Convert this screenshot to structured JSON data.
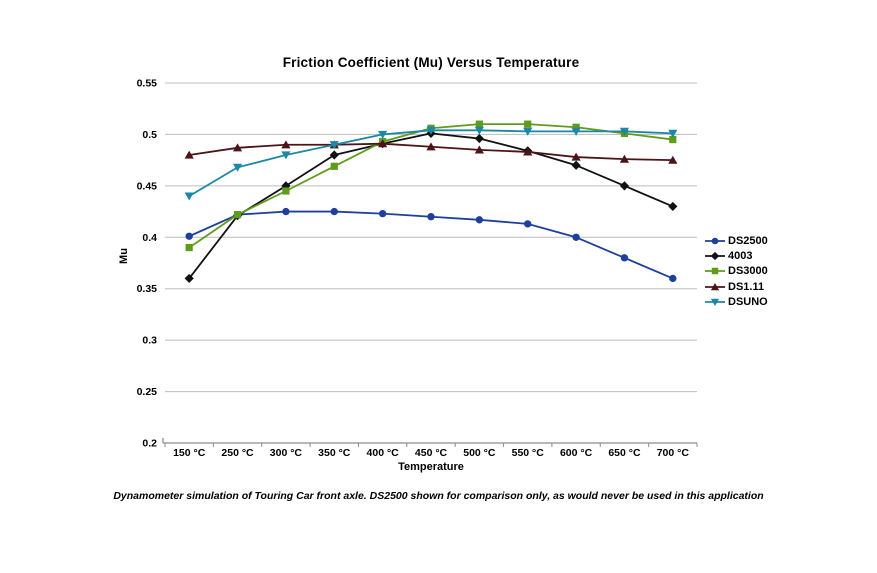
{
  "style": {
    "background": "#ffffff",
    "grid_color": "#bdbdbd",
    "axis_color": "#8c8c8c",
    "text_color": "#000000"
  },
  "chart_data": {
    "type": "line",
    "title": "Friction Coefficient (Mu) Versus Temperature",
    "xlabel": "Temperature",
    "ylabel": "Mu",
    "caption": "Dynamometer simulation of Touring Car front axle. DS2500 shown for comparison only, as would never be used in this application",
    "categories": [
      "150 °C",
      "250 °C",
      "300 °C",
      "350 °C",
      "400 °C",
      "450 °C",
      "500 °C",
      "550 °C",
      "600 °C",
      "650 °C",
      "700 °C"
    ],
    "ylim": [
      0.2,
      0.55
    ],
    "ytick_step": 0.05,
    "grid": true,
    "legend_position": "right",
    "series": [
      {
        "name": "DS2500",
        "color": "#1e3f9c",
        "marker": "circle",
        "values": [
          0.401,
          0.422,
          0.425,
          0.425,
          0.423,
          0.42,
          0.417,
          0.413,
          0.4,
          0.38,
          0.36
        ]
      },
      {
        "name": "4003",
        "color": "#121212",
        "marker": "diamond",
        "values": [
          0.36,
          0.421,
          0.45,
          0.48,
          0.491,
          0.501,
          0.496,
          0.484,
          0.47,
          0.45,
          0.43
        ]
      },
      {
        "name": "DS3000",
        "color": "#5e9c1e",
        "marker": "square",
        "values": [
          0.39,
          0.422,
          0.445,
          0.469,
          0.493,
          0.506,
          0.51,
          0.51,
          0.507,
          0.501,
          0.495
        ]
      },
      {
        "name": "DS1.11",
        "color": "#4d1418",
        "marker": "triangle-up",
        "values": [
          0.48,
          0.487,
          0.49,
          0.49,
          0.491,
          0.488,
          0.485,
          0.483,
          0.478,
          0.476,
          0.475
        ]
      },
      {
        "name": "DSUNO",
        "color": "#1e87a5",
        "marker": "triangle-down",
        "values": [
          0.44,
          0.468,
          0.48,
          0.49,
          0.5,
          0.504,
          0.504,
          0.503,
          0.503,
          0.503,
          0.501
        ]
      }
    ]
  }
}
